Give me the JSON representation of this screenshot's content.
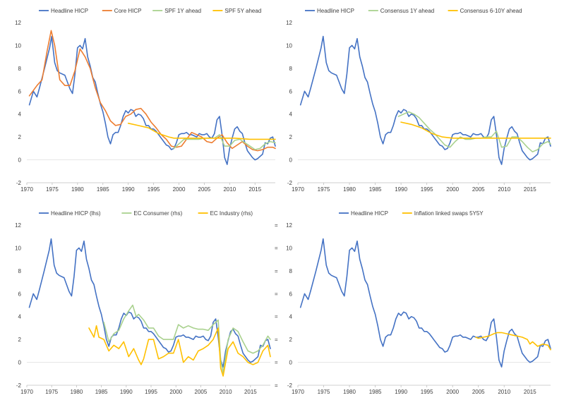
{
  "chart_data": [
    {
      "type": "line",
      "xlim": [
        1970,
        2019
      ],
      "ylim": [
        -2,
        12
      ],
      "y_ticks": [
        -2,
        0,
        2,
        4,
        6,
        8,
        10,
        12
      ],
      "x_ticks": [
        1970,
        1975,
        1980,
        1985,
        1990,
        1995,
        2000,
        2005,
        2010,
        2015
      ],
      "series": [
        {
          "name": "Headline HICP",
          "color": "#4472c4",
          "key": "headline"
        },
        {
          "name": "Core HICP",
          "color": "#ed7d31",
          "x": [
            1970.5,
            1972,
            1973,
            1974,
            1974.8,
            1975.5,
            1976.5,
            1977.5,
            1978.5,
            1979.5,
            1980.5,
            1981.5,
            1982.5,
            1983.5,
            1984.5,
            1985.5,
            1986.5,
            1987.5,
            1988.5,
            1989.5,
            1990.5,
            1991.5,
            1992.5,
            1993.5,
            1994.5,
            1995.5,
            1996.5,
            1997.5,
            1998.5,
            1999.5,
            2000.5,
            2001.5,
            2002.5,
            2003.5,
            2004.5,
            2005.5,
            2006.5,
            2007.5,
            2008.5,
            2009.5,
            2010.5,
            2011.5,
            2012.5,
            2013.5,
            2014.5,
            2015.5,
            2016.5,
            2017.5,
            2018.5,
            2019
          ],
          "y": [
            5.6,
            6.5,
            7.0,
            9.5,
            11.3,
            10.0,
            7.0,
            6.5,
            6.5,
            7.8,
            9.7,
            9.0,
            8.0,
            6.3,
            5.0,
            4.3,
            3.4,
            3.0,
            3.1,
            3.8,
            4.0,
            4.4,
            4.5,
            4.0,
            3.3,
            2.8,
            2.2,
            1.8,
            1.2,
            1.1,
            1.2,
            1.8,
            2.4,
            2.2,
            2.0,
            1.6,
            1.5,
            1.9,
            2.2,
            1.5,
            1.0,
            1.3,
            1.6,
            1.2,
            0.9,
            0.8,
            0.9,
            1.1,
            1.1,
            1.0
          ]
        },
        {
          "name": "SPF 1Y ahead",
          "color": "#a9d18e",
          "x": [
            1999,
            2000,
            2001,
            2002,
            2003,
            2004,
            2005,
            2006,
            2007,
            2008,
            2009,
            2010,
            2011,
            2012,
            2013,
            2014,
            2015,
            2016,
            2017,
            2018,
            2019
          ],
          "y": [
            1.0,
            1.4,
            1.8,
            1.8,
            1.8,
            1.8,
            1.9,
            1.9,
            1.9,
            2.2,
            1.2,
            1.2,
            1.7,
            1.8,
            1.5,
            1.2,
            0.9,
            1.0,
            1.4,
            1.6,
            1.5
          ]
        },
        {
          "name": "SPF 5Y ahead",
          "color": "#ffc000",
          "x": [
            1990,
            1992,
            1994,
            1996,
            1998,
            1999,
            2002,
            2005,
            2008,
            2011,
            2014,
            2017,
            2019
          ],
          "y": [
            3.2,
            3.0,
            2.8,
            2.3,
            2.0,
            1.9,
            1.9,
            1.9,
            1.9,
            1.9,
            1.8,
            1.8,
            1.8
          ]
        }
      ]
    },
    {
      "type": "line",
      "xlim": [
        1970,
        2019
      ],
      "ylim": [
        -2,
        12
      ],
      "y_ticks": [
        -2,
        0,
        2,
        4,
        6,
        8,
        10,
        12
      ],
      "x_ticks": [
        1970,
        1975,
        1980,
        1985,
        1990,
        1995,
        2000,
        2005,
        2010,
        2015
      ],
      "series": [
        {
          "name": "Headline HICP",
          "color": "#4472c4",
          "key": "headline"
        },
        {
          "name": "Consensus 1Y ahead",
          "color": "#a9d18e",
          "x": [
            1989.5,
            1990.5,
            1991.5,
            1992.5,
            1993.5,
            1994.5,
            1995.5,
            1996.5,
            1997.5,
            1998.5,
            1999.5,
            2000.5,
            2001.5,
            2002.5,
            2003.5,
            2004.5,
            2005.5,
            2006.5,
            2007.5,
            2008.5,
            2009.5,
            2010.5,
            2011.5,
            2012.5,
            2013.5,
            2014.5,
            2015.5,
            2016.5,
            2017.5,
            2018.5,
            2019
          ],
          "y": [
            3.8,
            4.0,
            4.2,
            4.0,
            3.7,
            3.2,
            2.7,
            2.3,
            1.8,
            1.3,
            1.1,
            1.6,
            2.0,
            1.8,
            1.8,
            1.9,
            1.9,
            2.0,
            2.0,
            2.5,
            1.1,
            1.2,
            2.0,
            2.0,
            1.6,
            1.1,
            0.7,
            0.9,
            1.4,
            1.6,
            1.4
          ]
        },
        {
          "name": "Consensus 6-10Y ahead",
          "color": "#ffc000",
          "x": [
            1990,
            1992,
            1994,
            1996,
            1998,
            2000,
            2005,
            2010,
            2015,
            2019
          ],
          "y": [
            3.3,
            3.1,
            2.8,
            2.3,
            2.0,
            1.9,
            1.9,
            1.9,
            1.9,
            1.9
          ]
        }
      ]
    },
    {
      "type": "line",
      "xlim": [
        1970,
        2019
      ],
      "ylim": [
        -2,
        12
      ],
      "y_ticks": [
        -2,
        0,
        2,
        4,
        6,
        8,
        10,
        12
      ],
      "x_ticks": [
        1970,
        1975,
        1980,
        1985,
        1990,
        1995,
        2000,
        2005,
        2010,
        2015
      ],
      "right_axis_ticks": "unlabeled",
      "series": [
        {
          "name": "Headline HICP (lhs)",
          "color": "#4472c4",
          "key": "headline"
        },
        {
          "name": "EC Consumer (rhs)",
          "color": "#a9d18e",
          "x": [
            1985.5,
            1986.5,
            1987.5,
            1988.5,
            1989.5,
            1990.5,
            1991.3,
            1992,
            1992.5,
            1993.5,
            1994.5,
            1995.5,
            1996.5,
            1997.5,
            1998.5,
            1999.5,
            2000.5,
            2001.5,
            2002.5,
            2003.5,
            2004.5,
            2005.5,
            2006.5,
            2007.5,
            2008.5,
            2009,
            2009.5,
            2010.5,
            2011.5,
            2012.5,
            2013.5,
            2014.5,
            2015.5,
            2016.5,
            2017.5,
            2018.5,
            2019
          ],
          "y": [
            3.5,
            1.8,
            2.5,
            2.8,
            3.8,
            4.5,
            5.0,
            4.0,
            4.2,
            3.7,
            3.0,
            3.0,
            2.3,
            2.0,
            2.0,
            2.0,
            3.3,
            3.0,
            3.2,
            3.0,
            2.9,
            2.9,
            2.8,
            3.3,
            3.7,
            0.2,
            -0.9,
            2.0,
            3.0,
            2.7,
            1.8,
            1.0,
            0.8,
            1.0,
            1.5,
            2.3,
            2.0
          ]
        },
        {
          "name": "EC Industry (rhs)",
          "color": "#ffc000",
          "x": [
            1982.5,
            1983.5,
            1984,
            1984.5,
            1985.5,
            1986.5,
            1987.5,
            1988.5,
            1989.5,
            1990.5,
            1991.5,
            1992.5,
            1993,
            1993.5,
            1994.5,
            1995.5,
            1996.5,
            1997.5,
            1998.5,
            1999.5,
            2000.5,
            2001.5,
            2002.5,
            2003.5,
            2004.5,
            2005.5,
            2006.5,
            2007.5,
            2008.5,
            2009,
            2009.5,
            2010.5,
            2011.5,
            2012.5,
            2013.5,
            2014.5,
            2015.5,
            2016.5,
            2017.5,
            2018.5,
            2019
          ],
          "y": [
            3.0,
            2.2,
            3.2,
            2.2,
            2.0,
            1.0,
            1.5,
            1.2,
            1.8,
            0.5,
            1.2,
            0.2,
            -0.2,
            0.3,
            2.0,
            2.0,
            0.3,
            0.5,
            0.8,
            0.8,
            2.0,
            0.0,
            0.5,
            0.2,
            1.0,
            1.2,
            1.5,
            2.0,
            3.0,
            -0.5,
            -1.2,
            1.2,
            1.8,
            0.8,
            0.5,
            0.0,
            -0.2,
            0.0,
            1.0,
            1.5,
            0.5
          ]
        }
      ]
    },
    {
      "type": "line",
      "xlim": [
        1970,
        2019
      ],
      "ylim": [
        -2,
        12
      ],
      "y_ticks": [
        -2,
        0,
        2,
        4,
        6,
        8,
        10,
        12
      ],
      "x_ticks": [
        1970,
        1975,
        1980,
        1985,
        1990,
        1995,
        2000,
        2005,
        2010,
        2015
      ],
      "series": [
        {
          "name": "Headline HICP",
          "color": "#4472c4",
          "key": "headline"
        },
        {
          "name": "Inflation linked swaps 5Y5Y",
          "color": "#ffc000",
          "x": [
            2004.5,
            2005,
            2006,
            2007,
            2008,
            2008.7,
            2009.5,
            2010.5,
            2011.5,
            2012.5,
            2013.5,
            2014.5,
            2015,
            2015.5,
            2016.5,
            2017.5,
            2018.5,
            2019
          ],
          "y": [
            2.2,
            2.1,
            2.2,
            2.3,
            2.5,
            2.6,
            2.6,
            2.5,
            2.4,
            2.3,
            2.2,
            2.0,
            1.6,
            1.8,
            1.4,
            1.6,
            1.5,
            1.1
          ]
        }
      ]
    }
  ],
  "headline_hicp": {
    "x": [
      1970.5,
      1971.3,
      1972,
      1972.5,
      1973.5,
      1974.5,
      1974.9,
      1975.5,
      1976,
      1976.5,
      1977.5,
      1978.5,
      1979,
      1979.5,
      1980,
      1980.5,
      1981,
      1981.5,
      1982,
      1982.5,
      1983,
      1983.5,
      1984,
      1984.5,
      1985,
      1985.5,
      1986,
      1986.5,
      1987,
      1987.5,
      1988,
      1988.5,
      1989,
      1989.5,
      1990,
      1990.5,
      1991,
      1991.5,
      1992,
      1992.5,
      1993,
      1993.5,
      1994,
      1994.5,
      1995,
      1995.5,
      1996,
      1996.5,
      1997,
      1997.5,
      1998,
      1998.5,
      1999,
      1999.5,
      2000,
      2000.5,
      2001,
      2001.5,
      2002,
      2002.5,
      2003,
      2003.5,
      2004,
      2004.5,
      2005,
      2005.5,
      2006,
      2006.5,
      2007,
      2007.5,
      2008,
      2008.5,
      2009,
      2009.5,
      2010,
      2010.5,
      2011,
      2011.5,
      2012,
      2012.5,
      2013,
      2013.5,
      2014,
      2014.5,
      2015,
      2015.5,
      2016,
      2016.5,
      2017,
      2017.5,
      2018,
      2018.5,
      2019
    ],
    "y": [
      4.8,
      6.0,
      5.5,
      6.3,
      8.0,
      9.8,
      10.8,
      8.5,
      7.8,
      7.6,
      7.4,
      6.2,
      5.8,
      7.5,
      9.8,
      10.0,
      9.7,
      10.6,
      9.0,
      8.2,
      7.2,
      6.8,
      5.8,
      4.9,
      4.2,
      3.2,
      2.0,
      1.4,
      2.2,
      2.4,
      2.4,
      3.0,
      3.8,
      4.3,
      4.1,
      4.4,
      4.3,
      3.8,
      4.0,
      3.9,
      3.6,
      3.0,
      3.0,
      2.7,
      2.7,
      2.5,
      2.2,
      1.9,
      1.6,
      1.3,
      1.2,
      0.9,
      1.0,
      1.5,
      2.2,
      2.3,
      2.3,
      2.4,
      2.2,
      2.2,
      2.1,
      2.0,
      2.3,
      2.2,
      2.2,
      2.3,
      2.0,
      1.9,
      2.3,
      3.5,
      3.8,
      2.2,
      0.2,
      -0.4,
      1.0,
      1.9,
      2.7,
      2.9,
      2.5,
      2.3,
      1.5,
      0.8,
      0.5,
      0.2,
      0.0,
      0.1,
      0.3,
      0.5,
      1.5,
      1.4,
      1.9,
      2.0,
      1.2
    ]
  }
}
